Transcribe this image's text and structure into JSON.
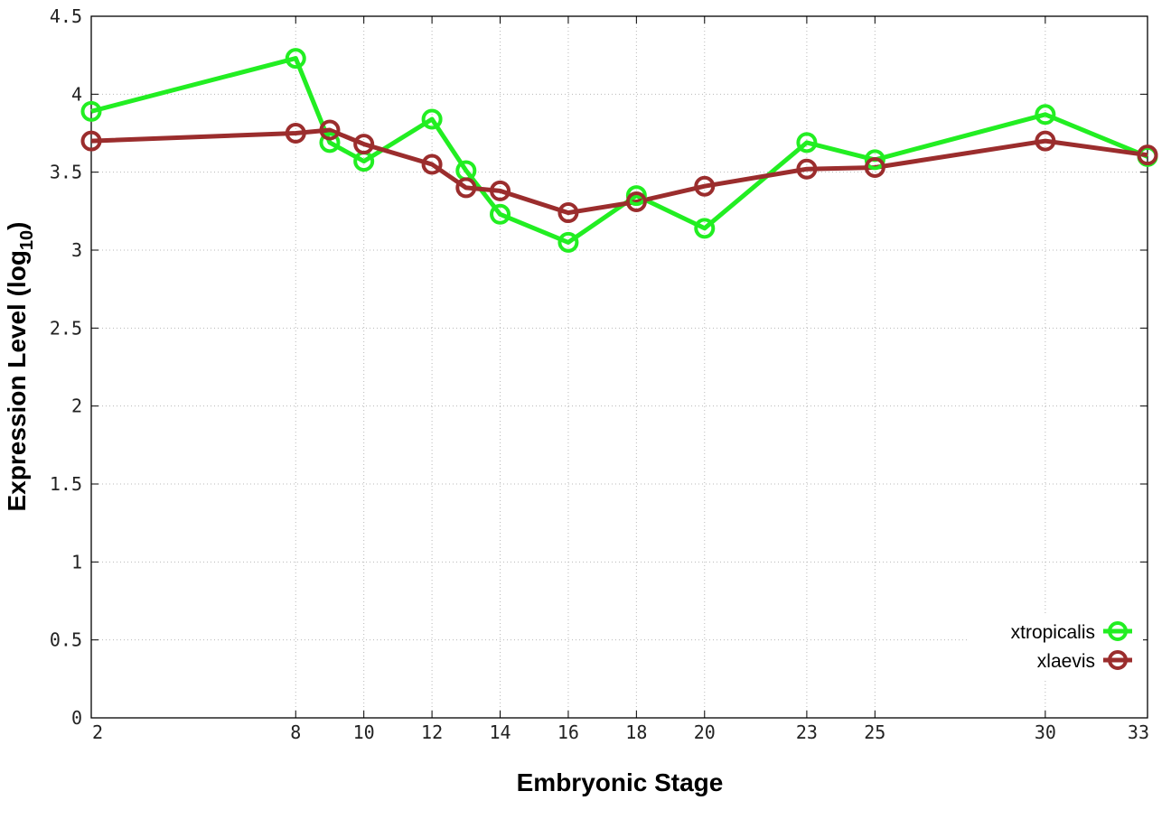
{
  "chart_data": {
    "type": "line",
    "xlabel": "Embryonic Stage",
    "ylabel_main": "Expression Level (log",
    "ylabel_sub": "10",
    "ylabel_close": ")",
    "x": [
      2,
      8,
      9,
      10,
      12,
      13,
      14,
      16,
      18,
      20,
      23,
      25,
      30,
      33
    ],
    "x_ticks": [
      2,
      8,
      10,
      12,
      14,
      16,
      18,
      20,
      23,
      25,
      30,
      33
    ],
    "y_ticks": [
      "0",
      "0.5",
      "1",
      "1.5",
      "2",
      "2.5",
      "3",
      "3.5",
      "4",
      "4.5"
    ],
    "ylim": [
      0,
      4.5
    ],
    "grid": true,
    "legend_position": "bottom-right",
    "series": [
      {
        "name": "xtropicalis",
        "color": "#22ee22",
        "values": [
          3.89,
          4.23,
          3.69,
          3.57,
          3.84,
          3.51,
          3.23,
          3.05,
          3.35,
          3.14,
          3.69,
          3.58,
          3.87,
          3.6
        ]
      },
      {
        "name": "xlaevis",
        "color": "#9b2d2d",
        "values": [
          3.7,
          3.75,
          3.77,
          3.68,
          3.55,
          3.4,
          3.38,
          3.24,
          3.31,
          3.41,
          3.52,
          3.53,
          3.7,
          3.61
        ]
      }
    ]
  }
}
